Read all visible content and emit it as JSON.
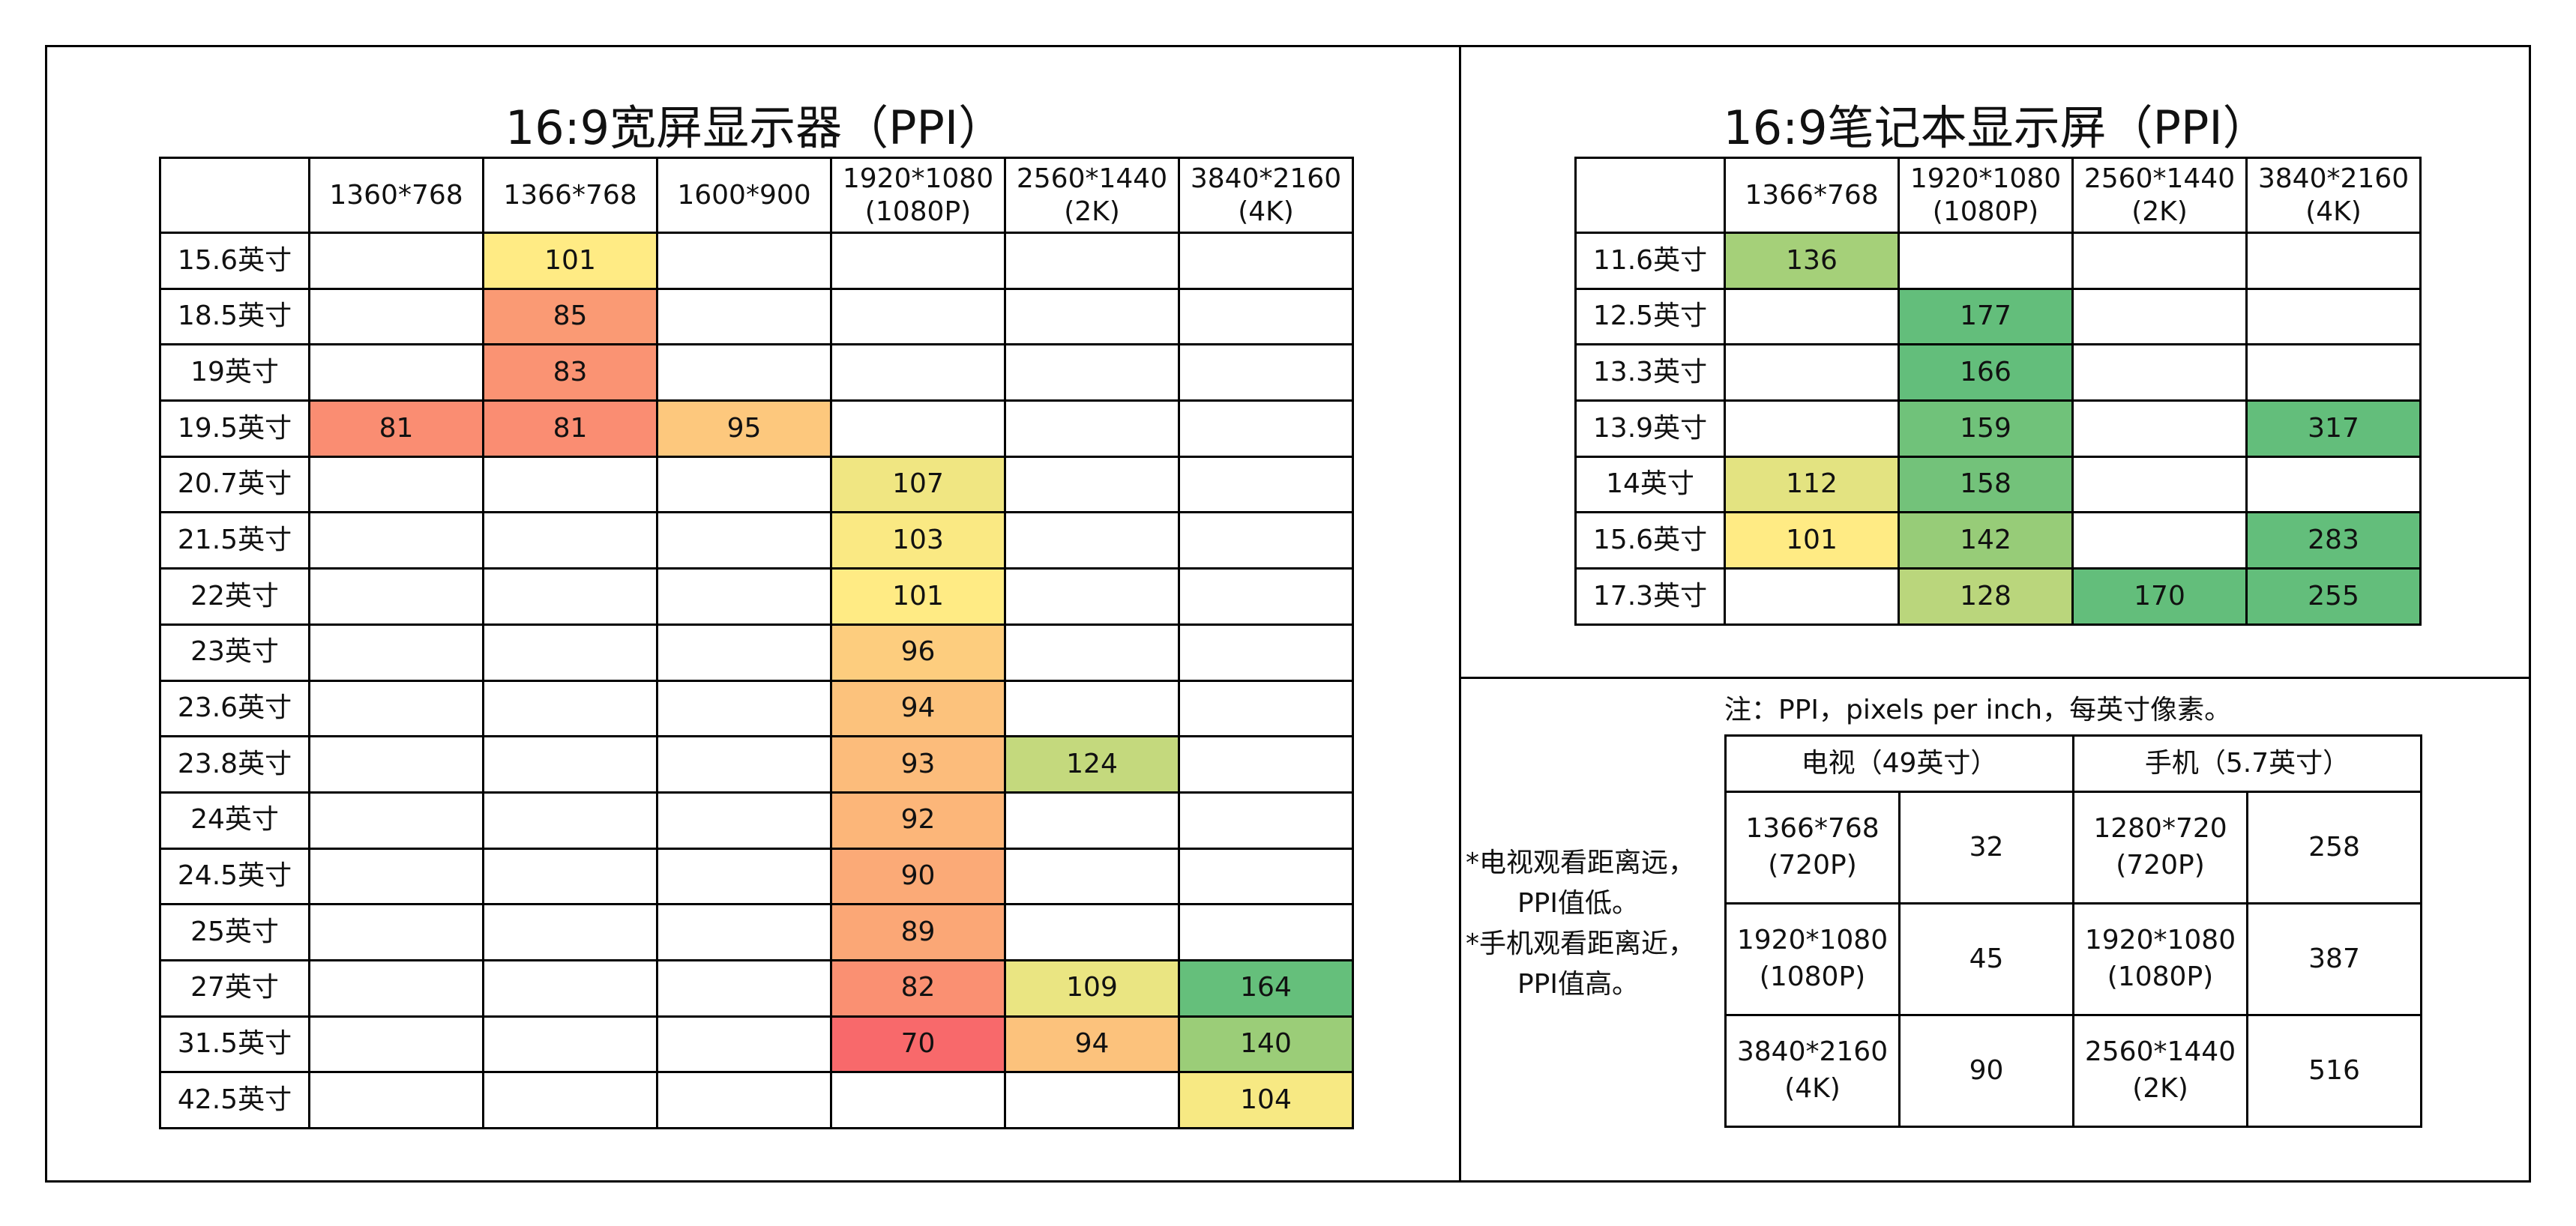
{
  "chart_data": [
    {
      "type": "table",
      "title": "16:9宽屏显示器（PPI）",
      "columns": [
        "1360*768",
        "1366*768",
        "1600*900",
        "1920*1080\n(1080P)",
        "2560*1440\n(2K)",
        "3840*2160\n(4K)"
      ],
      "rows": [
        {
          "label": "15.6英寸",
          "values": [
            null,
            101,
            null,
            null,
            null,
            null
          ]
        },
        {
          "label": "18.5英寸",
          "values": [
            null,
            85,
            null,
            null,
            null,
            null
          ]
        },
        {
          "label": "19英寸",
          "values": [
            null,
            83,
            null,
            null,
            null,
            null
          ]
        },
        {
          "label": "19.5英寸",
          "values": [
            81,
            81,
            95,
            null,
            null,
            null
          ]
        },
        {
          "label": "20.7英寸",
          "values": [
            null,
            null,
            null,
            107,
            null,
            null
          ]
        },
        {
          "label": "21.5英寸",
          "values": [
            null,
            null,
            null,
            103,
            null,
            null
          ]
        },
        {
          "label": "22英寸",
          "values": [
            null,
            null,
            null,
            101,
            null,
            null
          ]
        },
        {
          "label": "23英寸",
          "values": [
            null,
            null,
            null,
            96,
            null,
            null
          ]
        },
        {
          "label": "23.6英寸",
          "values": [
            null,
            null,
            null,
            94,
            null,
            null
          ]
        },
        {
          "label": "23.8英寸",
          "values": [
            null,
            null,
            null,
            93,
            124,
            null
          ]
        },
        {
          "label": "24英寸",
          "values": [
            null,
            null,
            null,
            92,
            null,
            null
          ]
        },
        {
          "label": "24.5英寸",
          "values": [
            null,
            null,
            null,
            90,
            null,
            null
          ]
        },
        {
          "label": "25英寸",
          "values": [
            null,
            null,
            null,
            89,
            null,
            null
          ]
        },
        {
          "label": "27英寸",
          "values": [
            null,
            null,
            null,
            82,
            109,
            164
          ]
        },
        {
          "label": "31.5英寸",
          "values": [
            null,
            null,
            null,
            70,
            94,
            140
          ]
        },
        {
          "label": "42.5英寸",
          "values": [
            null,
            null,
            null,
            null,
            null,
            104
          ]
        }
      ]
    },
    {
      "type": "table",
      "title": "16:9笔记本显示屏（PPI）",
      "columns": [
        "1366*768",
        "1920*1080\n(1080P)",
        "2560*1440\n(2K)",
        "3840*2160\n(4K)"
      ],
      "rows": [
        {
          "label": "11.6英寸",
          "values": [
            136,
            null,
            null,
            null
          ]
        },
        {
          "label": "12.5英寸",
          "values": [
            null,
            177,
            null,
            null
          ]
        },
        {
          "label": "13.3英寸",
          "values": [
            null,
            166,
            null,
            null
          ]
        },
        {
          "label": "13.9英寸",
          "values": [
            null,
            159,
            null,
            317
          ]
        },
        {
          "label": "14英寸",
          "values": [
            112,
            158,
            null,
            null
          ]
        },
        {
          "label": "15.6英寸",
          "values": [
            101,
            142,
            null,
            283
          ]
        },
        {
          "label": "17.3英寸",
          "values": [
            null,
            128,
            170,
            255
          ]
        }
      ]
    },
    {
      "type": "table",
      "note": "注：PPI，pixels per inch，每英寸像素。",
      "groups": [
        "电视（49英寸）",
        "手机（5.7英寸）"
      ],
      "rows": [
        {
          "tv_res": "1366*768\n(720P)",
          "tv_ppi": 32,
          "phone_res": "1280*720\n(720P)",
          "phone_ppi": 258
        },
        {
          "tv_res": "1920*1080\n(1080P)",
          "tv_ppi": 45,
          "phone_res": "1920*1080\n(1080P)",
          "phone_ppi": 387
        },
        {
          "tv_res": "3840*2160\n(4K)",
          "tv_ppi": 90,
          "phone_res": "2560*1440\n(2K)",
          "phone_ppi": 516
        }
      ]
    }
  ],
  "side_note": [
    "*电视观看距离远，",
    "PPI值低。",
    "*手机观看距离近，",
    "PPI值高。"
  ]
}
